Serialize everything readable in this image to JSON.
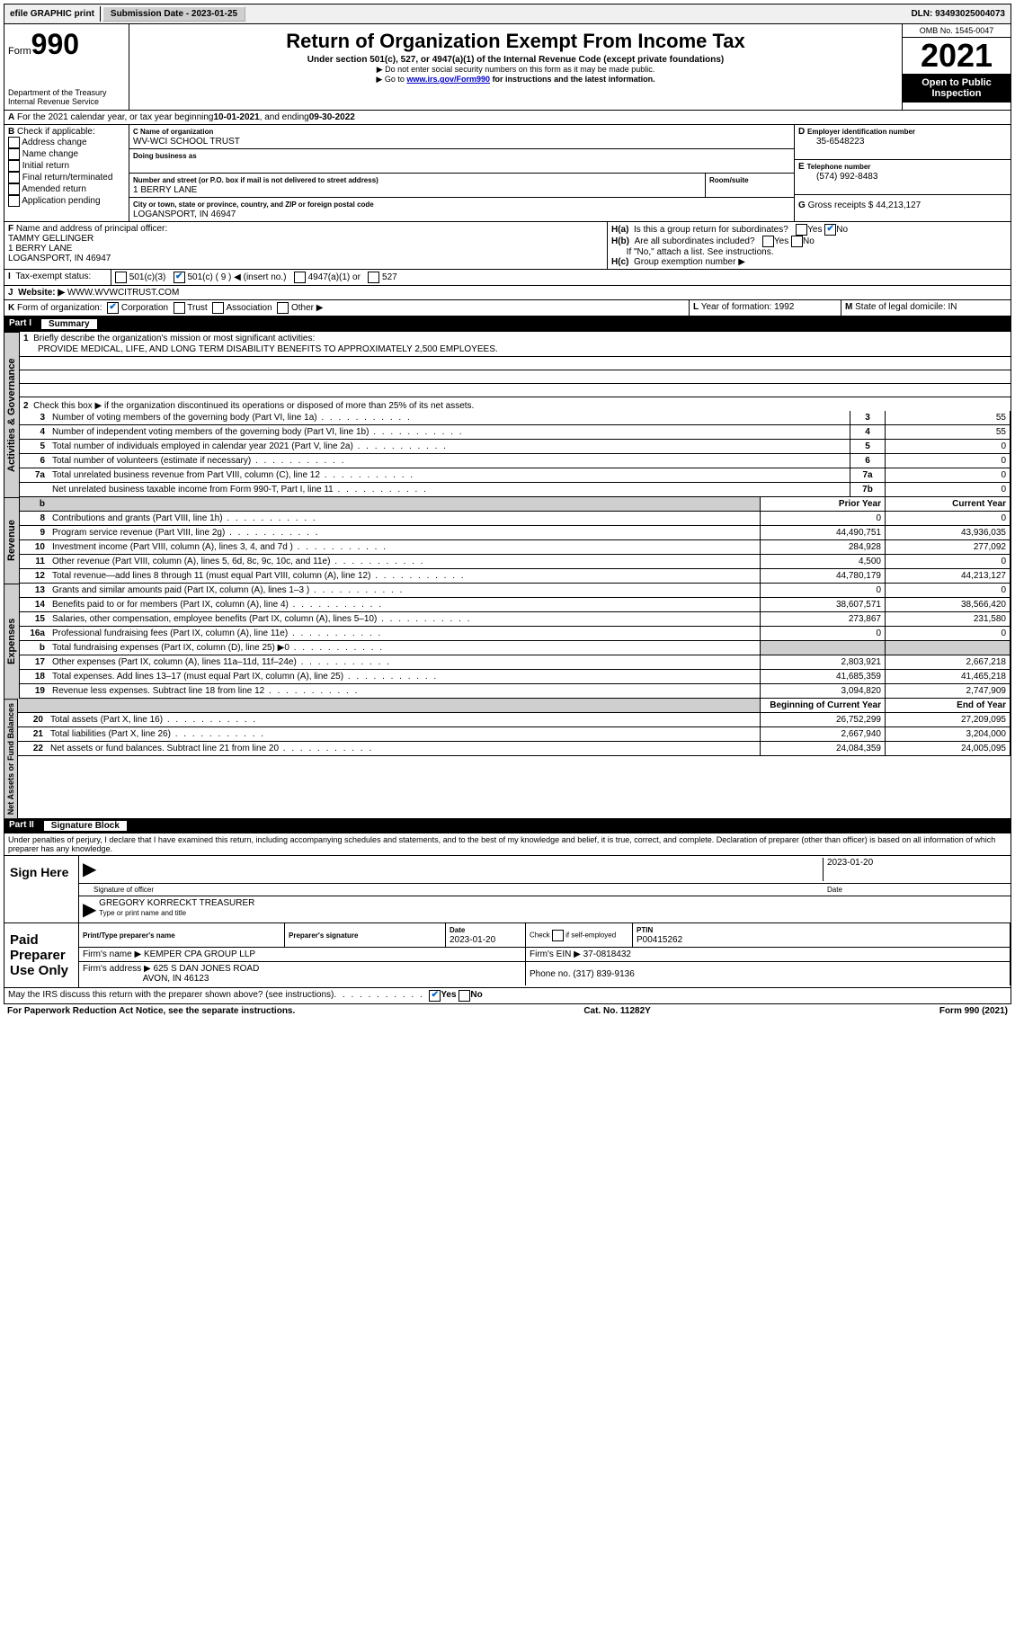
{
  "topbar": {
    "efile": "efile GRAPHIC print",
    "submission_label": "Submission Date - ",
    "submission_date": "2023-01-25",
    "dln_label": "DLN: ",
    "dln": "93493025004073"
  },
  "header": {
    "form_prefix": "Form",
    "form_number": "990",
    "dept": "Department of the Treasury",
    "irs": "Internal Revenue Service",
    "title": "Return of Organization Exempt From Income Tax",
    "sub": "Under section 501(c), 527, or 4947(a)(1) of the Internal Revenue Code (except private foundations)",
    "note1": "▶ Do not enter social security numbers on this form as it may be made public.",
    "note2_pre": "▶ Go to ",
    "note2_link": "www.irs.gov/Form990",
    "note2_post": " for instructions and the latest information.",
    "omb": "OMB No. 1545-0047",
    "year": "2021",
    "inspection": "Open to Public Inspection"
  },
  "A": {
    "text": "For the 2021 calendar year, or tax year beginning ",
    "begin": "10-01-2021",
    "mid": " , and ending ",
    "end": "09-30-2022"
  },
  "B": {
    "label": "Check if applicable:",
    "items": [
      "Address change",
      "Name change",
      "Initial return",
      "Final return/terminated",
      "Amended return",
      "Application pending"
    ]
  },
  "C": {
    "name_label": "Name of organization",
    "name": "WV-WCI SCHOOL TRUST",
    "dba_label": "Doing business as",
    "street_label": "Number and street (or P.O. box if mail is not delivered to street address)",
    "street": "1 BERRY LANE",
    "room_label": "Room/suite",
    "city_label": "City or town, state or province, country, and ZIP or foreign postal code",
    "city": "LOGANSPORT, IN  46947"
  },
  "D": {
    "label": "Employer identification number",
    "val": "35-6548223"
  },
  "E": {
    "label": "Telephone number",
    "val": "(574) 992-8483"
  },
  "G": {
    "label": "Gross receipts $",
    "val": "44,213,127"
  },
  "F": {
    "label": "Name and address of principal officer:",
    "name": "TAMMY GELLINGER",
    "street": "1 BERRY LANE",
    "city": "LOGANSPORT, IN  46947"
  },
  "H": {
    "a": "Is this a group return for subordinates?",
    "b": "Are all subordinates included?",
    "b_note": "If \"No,\" attach a list. See instructions.",
    "c": "Group exemption number ▶"
  },
  "I": {
    "label": "Tax-exempt status:",
    "opts": [
      "501(c)(3)",
      "501(c) ( 9 ) ◀ (insert no.)",
      "4947(a)(1) or",
      "527"
    ]
  },
  "J": {
    "label": "Website: ▶",
    "val": "WWW.WVWCITRUST.COM"
  },
  "K": {
    "label": "Form of organization:",
    "opts": [
      "Corporation",
      "Trust",
      "Association",
      "Other ▶"
    ]
  },
  "L": {
    "label": "Year of formation:",
    "val": "1992"
  },
  "M": {
    "label": "State of legal domicile:",
    "val": "IN"
  },
  "part1": {
    "title": "Part I",
    "name": "Summary",
    "l1": "Briefly describe the organization's mission or most significant activities:",
    "mission": "PROVIDE MEDICAL, LIFE, AND LONG TERM DISABILITY BENEFITS TO APPROXIMATELY 2,500 EMPLOYEES.",
    "l2": "Check this box ▶        if the organization discontinued its operations or disposed of more than 25% of its net assets.",
    "lines_gov": [
      {
        "n": "3",
        "d": "Number of voting members of the governing body (Part VI, line 1a)",
        "b": "3",
        "v": "55"
      },
      {
        "n": "4",
        "d": "Number of independent voting members of the governing body (Part VI, line 1b)",
        "b": "4",
        "v": "55"
      },
      {
        "n": "5",
        "d": "Total number of individuals employed in calendar year 2021 (Part V, line 2a)",
        "b": "5",
        "v": "0"
      },
      {
        "n": "6",
        "d": "Total number of volunteers (estimate if necessary)",
        "b": "6",
        "v": "0"
      },
      {
        "n": "7a",
        "d": "Total unrelated business revenue from Part VIII, column (C), line 12",
        "b": "7a",
        "v": "0"
      },
      {
        "n": "",
        "d": "Net unrelated business taxable income from Form 990-T, Part I, line 11",
        "b": "7b",
        "v": "0"
      }
    ],
    "col_prior": "Prior Year",
    "col_current": "Current Year",
    "lines_rev": [
      {
        "n": "8",
        "d": "Contributions and grants (Part VIII, line 1h)",
        "p": "0",
        "c": "0"
      },
      {
        "n": "9",
        "d": "Program service revenue (Part VIII, line 2g)",
        "p": "44,490,751",
        "c": "43,936,035"
      },
      {
        "n": "10",
        "d": "Investment income (Part VIII, column (A), lines 3, 4, and 7d )",
        "p": "284,928",
        "c": "277,092"
      },
      {
        "n": "11",
        "d": "Other revenue (Part VIII, column (A), lines 5, 6d, 8c, 9c, 10c, and 11e)",
        "p": "4,500",
        "c": "0"
      },
      {
        "n": "12",
        "d": "Total revenue—add lines 8 through 11 (must equal Part VIII, column (A), line 12)",
        "p": "44,780,179",
        "c": "44,213,127"
      }
    ],
    "lines_exp": [
      {
        "n": "13",
        "d": "Grants and similar amounts paid (Part IX, column (A), lines 1–3 )",
        "p": "0",
        "c": "0"
      },
      {
        "n": "14",
        "d": "Benefits paid to or for members (Part IX, column (A), line 4)",
        "p": "38,607,571",
        "c": "38,566,420"
      },
      {
        "n": "15",
        "d": "Salaries, other compensation, employee benefits (Part IX, column (A), lines 5–10)",
        "p": "273,867",
        "c": "231,580"
      },
      {
        "n": "16a",
        "d": "Professional fundraising fees (Part IX, column (A), line 11e)",
        "p": "0",
        "c": "0"
      },
      {
        "n": "b",
        "d": "Total fundraising expenses (Part IX, column (D), line 25) ▶0",
        "p": "",
        "c": "",
        "shade": true
      },
      {
        "n": "17",
        "d": "Other expenses (Part IX, column (A), lines 11a–11d, 11f–24e)",
        "p": "2,803,921",
        "c": "2,667,218"
      },
      {
        "n": "18",
        "d": "Total expenses. Add lines 13–17 (must equal Part IX, column (A), line 25)",
        "p": "41,685,359",
        "c": "41,465,218"
      },
      {
        "n": "19",
        "d": "Revenue less expenses. Subtract line 18 from line 12",
        "p": "3,094,820",
        "c": "2,747,909"
      }
    ],
    "col_begin": "Beginning of Current Year",
    "col_end": "End of Year",
    "lines_net": [
      {
        "n": "20",
        "d": "Total assets (Part X, line 16)",
        "p": "26,752,299",
        "c": "27,209,095"
      },
      {
        "n": "21",
        "d": "Total liabilities (Part X, line 26)",
        "p": "2,667,940",
        "c": "3,204,000"
      },
      {
        "n": "22",
        "d": "Net assets or fund balances. Subtract line 21 from line 20",
        "p": "24,084,359",
        "c": "24,005,095"
      }
    ]
  },
  "part2": {
    "title": "Part II",
    "name": "Signature Block",
    "decl": "Under penalties of perjury, I declare that I have examined this return, including accompanying schedules and statements, and to the best of my knowledge and belief, it is true, correct, and complete. Declaration of preparer (other than officer) is based on all information of which preparer has any knowledge."
  },
  "sign": {
    "label": "Sign Here",
    "sig_label": "Signature of officer",
    "date": "2023-01-20",
    "date_label": "Date",
    "name": "GREGORY KORRECKT TREASURER",
    "name_label": "Type or print name and title"
  },
  "paid": {
    "label": "Paid Preparer Use Only",
    "cols": [
      "Print/Type preparer's name",
      "Preparer's signature",
      "Date",
      "Check        if self-employed",
      "PTIN"
    ],
    "date": "2023-01-20",
    "ptin": "P00415262",
    "firm_label": "Firm's name    ▶",
    "firm": "KEMPER CPA GROUP LLP",
    "ein_label": "Firm's EIN ▶",
    "ein": "37-0818432",
    "addr_label": "Firm's address ▶",
    "addr1": "625 S DAN JONES ROAD",
    "addr2": "AVON, IN  46123",
    "phone_label": "Phone no.",
    "phone": "(317) 839-9136"
  },
  "discuss": "May the IRS discuss this return with the preparer shown above? (see instructions)",
  "footer": {
    "left": "For Paperwork Reduction Act Notice, see the separate instructions.",
    "mid": "Cat. No. 11282Y",
    "right": "Form 990 (2021)"
  },
  "yn": {
    "yes": "Yes",
    "no": "No"
  },
  "tabs": {
    "gov": "Activities & Governance",
    "rev": "Revenue",
    "exp": "Expenses",
    "net": "Net Assets or Fund Balances"
  }
}
